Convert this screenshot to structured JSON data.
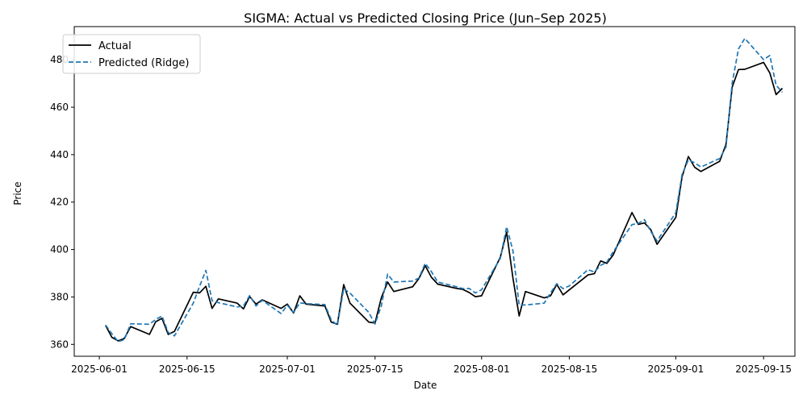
{
  "chart_data": {
    "type": "line",
    "title": "SIGMA: Actual vs Predicted Closing Price (Jun–Sep 2025)",
    "xlabel": "Date",
    "ylabel": "Price",
    "x_ticks": [
      "2025-06-01",
      "2025-06-15",
      "2025-07-01",
      "2025-07-15",
      "2025-08-01",
      "2025-08-15",
      "2025-09-01",
      "2025-09-15"
    ],
    "y_ticks": [
      "360",
      "380",
      "400",
      "420",
      "440",
      "460",
      "480"
    ],
    "xlim": [
      "2025-05-28",
      "2025-09-20"
    ],
    "ylim": [
      355,
      494
    ],
    "grid": false,
    "legend": "upper-left",
    "series": [
      {
        "name": "Actual",
        "color": "#000000",
        "style": "solid",
        "points": [
          [
            "2025-06-02",
            368
          ],
          [
            "2025-06-03",
            363
          ],
          [
            "2025-06-04",
            361.5
          ],
          [
            "2025-06-05",
            362.5
          ],
          [
            "2025-06-06",
            367.5
          ],
          [
            "2025-06-09",
            364.2
          ],
          [
            "2025-06-10",
            369.5
          ],
          [
            "2025-06-11",
            371
          ],
          [
            "2025-06-12",
            364.2
          ],
          [
            "2025-06-13",
            365.5
          ],
          [
            "2025-06-16",
            382
          ],
          [
            "2025-06-17",
            381.7
          ],
          [
            "2025-06-18",
            384.5
          ],
          [
            "2025-06-19",
            375.2
          ],
          [
            "2025-06-20",
            379.2
          ],
          [
            "2025-06-23",
            377.4
          ],
          [
            "2025-06-24",
            375
          ],
          [
            "2025-06-25",
            380.2
          ],
          [
            "2025-06-26",
            377
          ],
          [
            "2025-06-27",
            378.8
          ],
          [
            "2025-06-30",
            375.2
          ],
          [
            "2025-07-01",
            377
          ],
          [
            "2025-07-02",
            373.2
          ],
          [
            "2025-07-03",
            380.5
          ],
          [
            "2025-07-04",
            377
          ],
          [
            "2025-07-07",
            376.2
          ],
          [
            "2025-07-08",
            369.4
          ],
          [
            "2025-07-09",
            368.5
          ],
          [
            "2025-07-10",
            385.2
          ],
          [
            "2025-07-11",
            377.4
          ],
          [
            "2025-07-14",
            369.4
          ],
          [
            "2025-07-15",
            369
          ],
          [
            "2025-07-16",
            379.6
          ],
          [
            "2025-07-17",
            386.3
          ],
          [
            "2025-07-18",
            382.3
          ],
          [
            "2025-07-21",
            384.3
          ],
          [
            "2025-07-22",
            387.8
          ],
          [
            "2025-07-23",
            393.2
          ],
          [
            "2025-07-24",
            388.3
          ],
          [
            "2025-07-25",
            385.4
          ],
          [
            "2025-07-28",
            383.6
          ],
          [
            "2025-07-29",
            383.2
          ],
          [
            "2025-07-30",
            381.9
          ],
          [
            "2025-07-31",
            380.1
          ],
          [
            "2025-08-01",
            380.5
          ],
          [
            "2025-08-04",
            396.8
          ],
          [
            "2025-08-05",
            407.3
          ],
          [
            "2025-08-06",
            388
          ],
          [
            "2025-08-07",
            372
          ],
          [
            "2025-08-08",
            382.3
          ],
          [
            "2025-08-11",
            379.6
          ],
          [
            "2025-08-12",
            380.5
          ],
          [
            "2025-08-13",
            385.3
          ],
          [
            "2025-08-14",
            380.9
          ],
          [
            "2025-08-15",
            383
          ],
          [
            "2025-08-18",
            389.3
          ],
          [
            "2025-08-19",
            389.8
          ],
          [
            "2025-08-20",
            395.2
          ],
          [
            "2025-08-21",
            394.2
          ],
          [
            "2025-08-22",
            397.7
          ],
          [
            "2025-08-25",
            415.6
          ],
          [
            "2025-08-26",
            410.6
          ],
          [
            "2025-08-27",
            411.2
          ],
          [
            "2025-08-28",
            408.4
          ],
          [
            "2025-08-29",
            402.2
          ],
          [
            "2025-09-01",
            413.6
          ],
          [
            "2025-09-02",
            430.7
          ],
          [
            "2025-09-03",
            439.2
          ],
          [
            "2025-09-04",
            434.7
          ],
          [
            "2025-09-05",
            432.9
          ],
          [
            "2025-09-08",
            437.2
          ],
          [
            "2025-09-09",
            444.3
          ],
          [
            "2025-09-10",
            468.5
          ],
          [
            "2025-09-11",
            475.9
          ],
          [
            "2025-09-12",
            476
          ],
          [
            "2025-09-15",
            478.9
          ],
          [
            "2025-09-16",
            474.5
          ],
          [
            "2025-09-17",
            465.3
          ],
          [
            "2025-09-18",
            468
          ]
        ]
      },
      {
        "name": "Predicted (Ridge)",
        "color": "#1f77b4",
        "style": "dashed",
        "points": [
          [
            "2025-06-02",
            368.2
          ],
          [
            "2025-06-03",
            364.5
          ],
          [
            "2025-06-04",
            361.2
          ],
          [
            "2025-06-05",
            362
          ],
          [
            "2025-06-06",
            368.7
          ],
          [
            "2025-06-09",
            368.5
          ],
          [
            "2025-06-10",
            370.5
          ],
          [
            "2025-06-11",
            372
          ],
          [
            "2025-06-12",
            365
          ],
          [
            "2025-06-13",
            363.6
          ],
          [
            "2025-06-16",
            377.4
          ],
          [
            "2025-06-17",
            384.5
          ],
          [
            "2025-06-18",
            391.2
          ],
          [
            "2025-06-19",
            378.4
          ],
          [
            "2025-06-20",
            377.6
          ],
          [
            "2025-06-23",
            375.8
          ],
          [
            "2025-06-24",
            376.2
          ],
          [
            "2025-06-25",
            380.6
          ],
          [
            "2025-06-26",
            376.2
          ],
          [
            "2025-06-27",
            378.6
          ],
          [
            "2025-06-30",
            373
          ],
          [
            "2025-07-01",
            376.5
          ],
          [
            "2025-07-02",
            373.5
          ],
          [
            "2025-07-03",
            377.5
          ],
          [
            "2025-07-04",
            377.2
          ],
          [
            "2025-07-07",
            376.8
          ],
          [
            "2025-07-08",
            370.4
          ],
          [
            "2025-07-09",
            368
          ],
          [
            "2025-07-10",
            383.5
          ],
          [
            "2025-07-11",
            381.6
          ],
          [
            "2025-07-14",
            373.5
          ],
          [
            "2025-07-15",
            368.6
          ],
          [
            "2025-07-16",
            376.2
          ],
          [
            "2025-07-17",
            389.6
          ],
          [
            "2025-07-18",
            386.3
          ],
          [
            "2025-07-21",
            386.7
          ],
          [
            "2025-07-22",
            388
          ],
          [
            "2025-07-23",
            394.2
          ],
          [
            "2025-07-24",
            390.7
          ],
          [
            "2025-07-25",
            386.3
          ],
          [
            "2025-07-28",
            384.3
          ],
          [
            "2025-07-29",
            383.5
          ],
          [
            "2025-07-30",
            383.6
          ],
          [
            "2025-07-31",
            381.7
          ],
          [
            "2025-08-01",
            383
          ],
          [
            "2025-08-04",
            396.3
          ],
          [
            "2025-08-05",
            409.6
          ],
          [
            "2025-08-06",
            399.5
          ],
          [
            "2025-08-07",
            376.6
          ],
          [
            "2025-08-08",
            376.6
          ],
          [
            "2025-08-11",
            377.4
          ],
          [
            "2025-08-12",
            381.7
          ],
          [
            "2025-08-13",
            385.6
          ],
          [
            "2025-08-14",
            383.5
          ],
          [
            "2025-08-15",
            384.7
          ],
          [
            "2025-08-18",
            391.5
          ],
          [
            "2025-08-19",
            390.5
          ],
          [
            "2025-08-20",
            393.3
          ],
          [
            "2025-08-21",
            394.7
          ],
          [
            "2025-08-22",
            399
          ],
          [
            "2025-08-25",
            410.5
          ],
          [
            "2025-08-26",
            411
          ],
          [
            "2025-08-27",
            412.6
          ],
          [
            "2025-08-28",
            407.6
          ],
          [
            "2025-08-29",
            403.6
          ],
          [
            "2025-09-01",
            415.6
          ],
          [
            "2025-09-02",
            431.7
          ],
          [
            "2025-09-03",
            437.8
          ],
          [
            "2025-09-04",
            436.6
          ],
          [
            "2025-09-05",
            434.8
          ],
          [
            "2025-09-08",
            438.4
          ],
          [
            "2025-09-09",
            443.2
          ],
          [
            "2025-09-10",
            470.2
          ],
          [
            "2025-09-11",
            484.6
          ],
          [
            "2025-09-12",
            489
          ],
          [
            "2025-09-15",
            480.1
          ],
          [
            "2025-09-16",
            481.8
          ],
          [
            "2025-09-17",
            469.3
          ],
          [
            "2025-09-18",
            466.3
          ]
        ]
      }
    ]
  }
}
